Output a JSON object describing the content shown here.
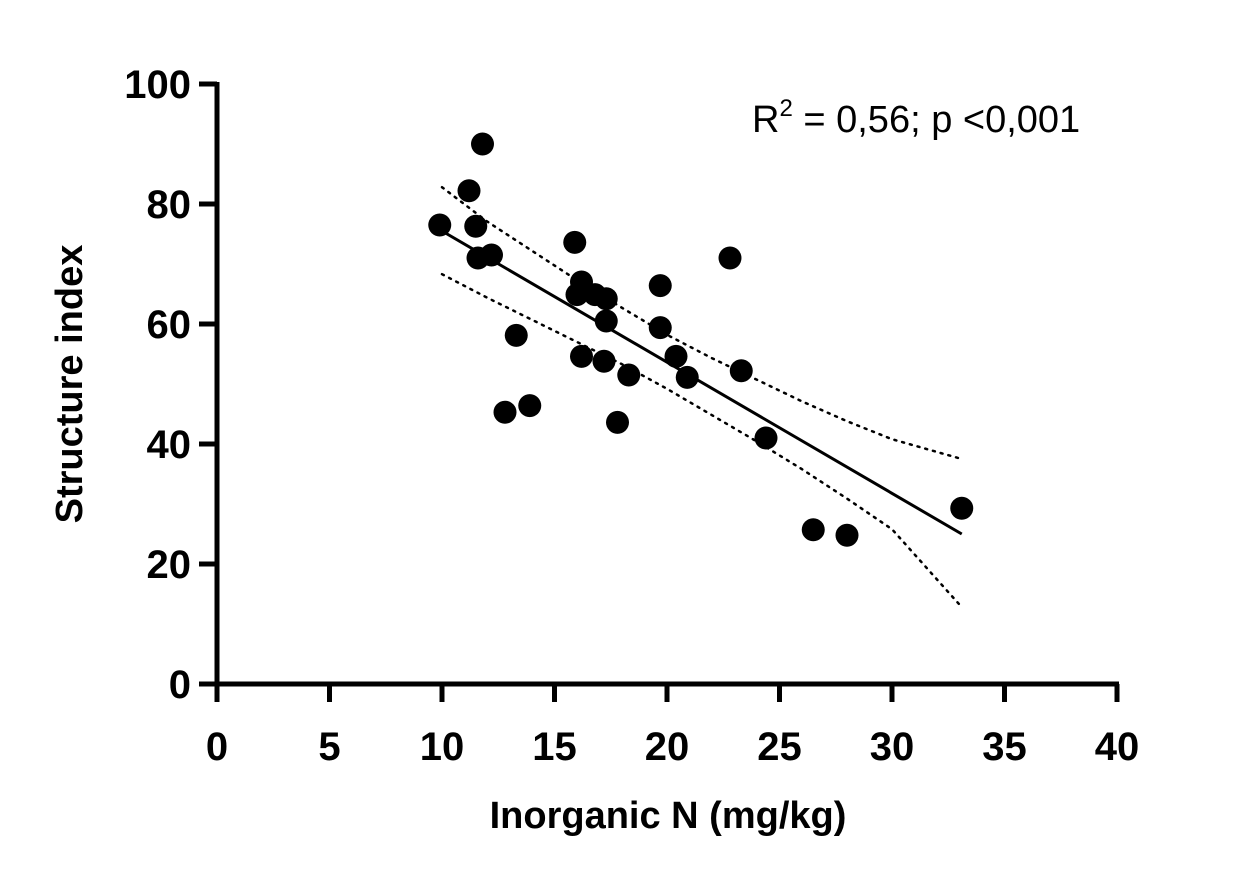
{
  "chart_data": {
    "type": "scatter",
    "xlabel": "Inorganic N (mg/kg)",
    "ylabel": "Structure index",
    "xlim": [
      0,
      40
    ],
    "ylim": [
      0,
      100
    ],
    "xticks": [
      0,
      5,
      10,
      15,
      20,
      25,
      30,
      35,
      40
    ],
    "yticks": [
      0,
      20,
      40,
      60,
      80,
      100
    ],
    "grid": false,
    "annotation": {
      "prefix": "R",
      "superscript": "2",
      "suffix": " = 0,56; p <0,001"
    },
    "points": [
      {
        "x": 9.9,
        "y": 76.5
      },
      {
        "x": 11.2,
        "y": 82.2
      },
      {
        "x": 11.5,
        "y": 76.3
      },
      {
        "x": 11.6,
        "y": 71.0
      },
      {
        "x": 11.8,
        "y": 90.0
      },
      {
        "x": 12.2,
        "y": 71.5
      },
      {
        "x": 12.8,
        "y": 45.3
      },
      {
        "x": 13.3,
        "y": 58.1
      },
      {
        "x": 13.9,
        "y": 46.4
      },
      {
        "x": 15.9,
        "y": 73.6
      },
      {
        "x": 16.0,
        "y": 64.9
      },
      {
        "x": 16.2,
        "y": 67.0
      },
      {
        "x": 16.2,
        "y": 54.6
      },
      {
        "x": 16.8,
        "y": 64.9
      },
      {
        "x": 17.2,
        "y": 53.8
      },
      {
        "x": 17.3,
        "y": 64.2
      },
      {
        "x": 17.3,
        "y": 60.5
      },
      {
        "x": 17.8,
        "y": 43.6
      },
      {
        "x": 18.3,
        "y": 51.5
      },
      {
        "x": 19.7,
        "y": 66.4
      },
      {
        "x": 19.7,
        "y": 59.4
      },
      {
        "x": 20.4,
        "y": 54.6
      },
      {
        "x": 20.9,
        "y": 51.1
      },
      {
        "x": 22.8,
        "y": 71.0
      },
      {
        "x": 23.3,
        "y": 52.2
      },
      {
        "x": 24.4,
        "y": 41.0
      },
      {
        "x": 26.5,
        "y": 25.7
      },
      {
        "x": 28.0,
        "y": 24.8
      },
      {
        "x": 33.1,
        "y": 29.3
      }
    ],
    "regression": {
      "x": [
        10,
        33.1
      ],
      "y": [
        75.5,
        25.0
      ]
    },
    "ci_upper": {
      "x": [
        10,
        12,
        14,
        16,
        18,
        20,
        22,
        24,
        26,
        28,
        30,
        33.1
      ],
      "y": [
        82.8,
        77.1,
        72.2,
        67.3,
        62.7,
        58.2,
        54.3,
        50.7,
        47.1,
        43.8,
        40.8,
        37.5
      ]
    },
    "ci_lower": {
      "x": [
        10,
        12,
        14,
        16,
        18,
        20,
        22,
        24,
        26,
        28,
        30,
        33.1
      ],
      "y": [
        68.3,
        64.4,
        60.7,
        57.0,
        53.3,
        49.2,
        44.8,
        40.4,
        35.8,
        30.9,
        25.8,
        12.8
      ]
    }
  }
}
